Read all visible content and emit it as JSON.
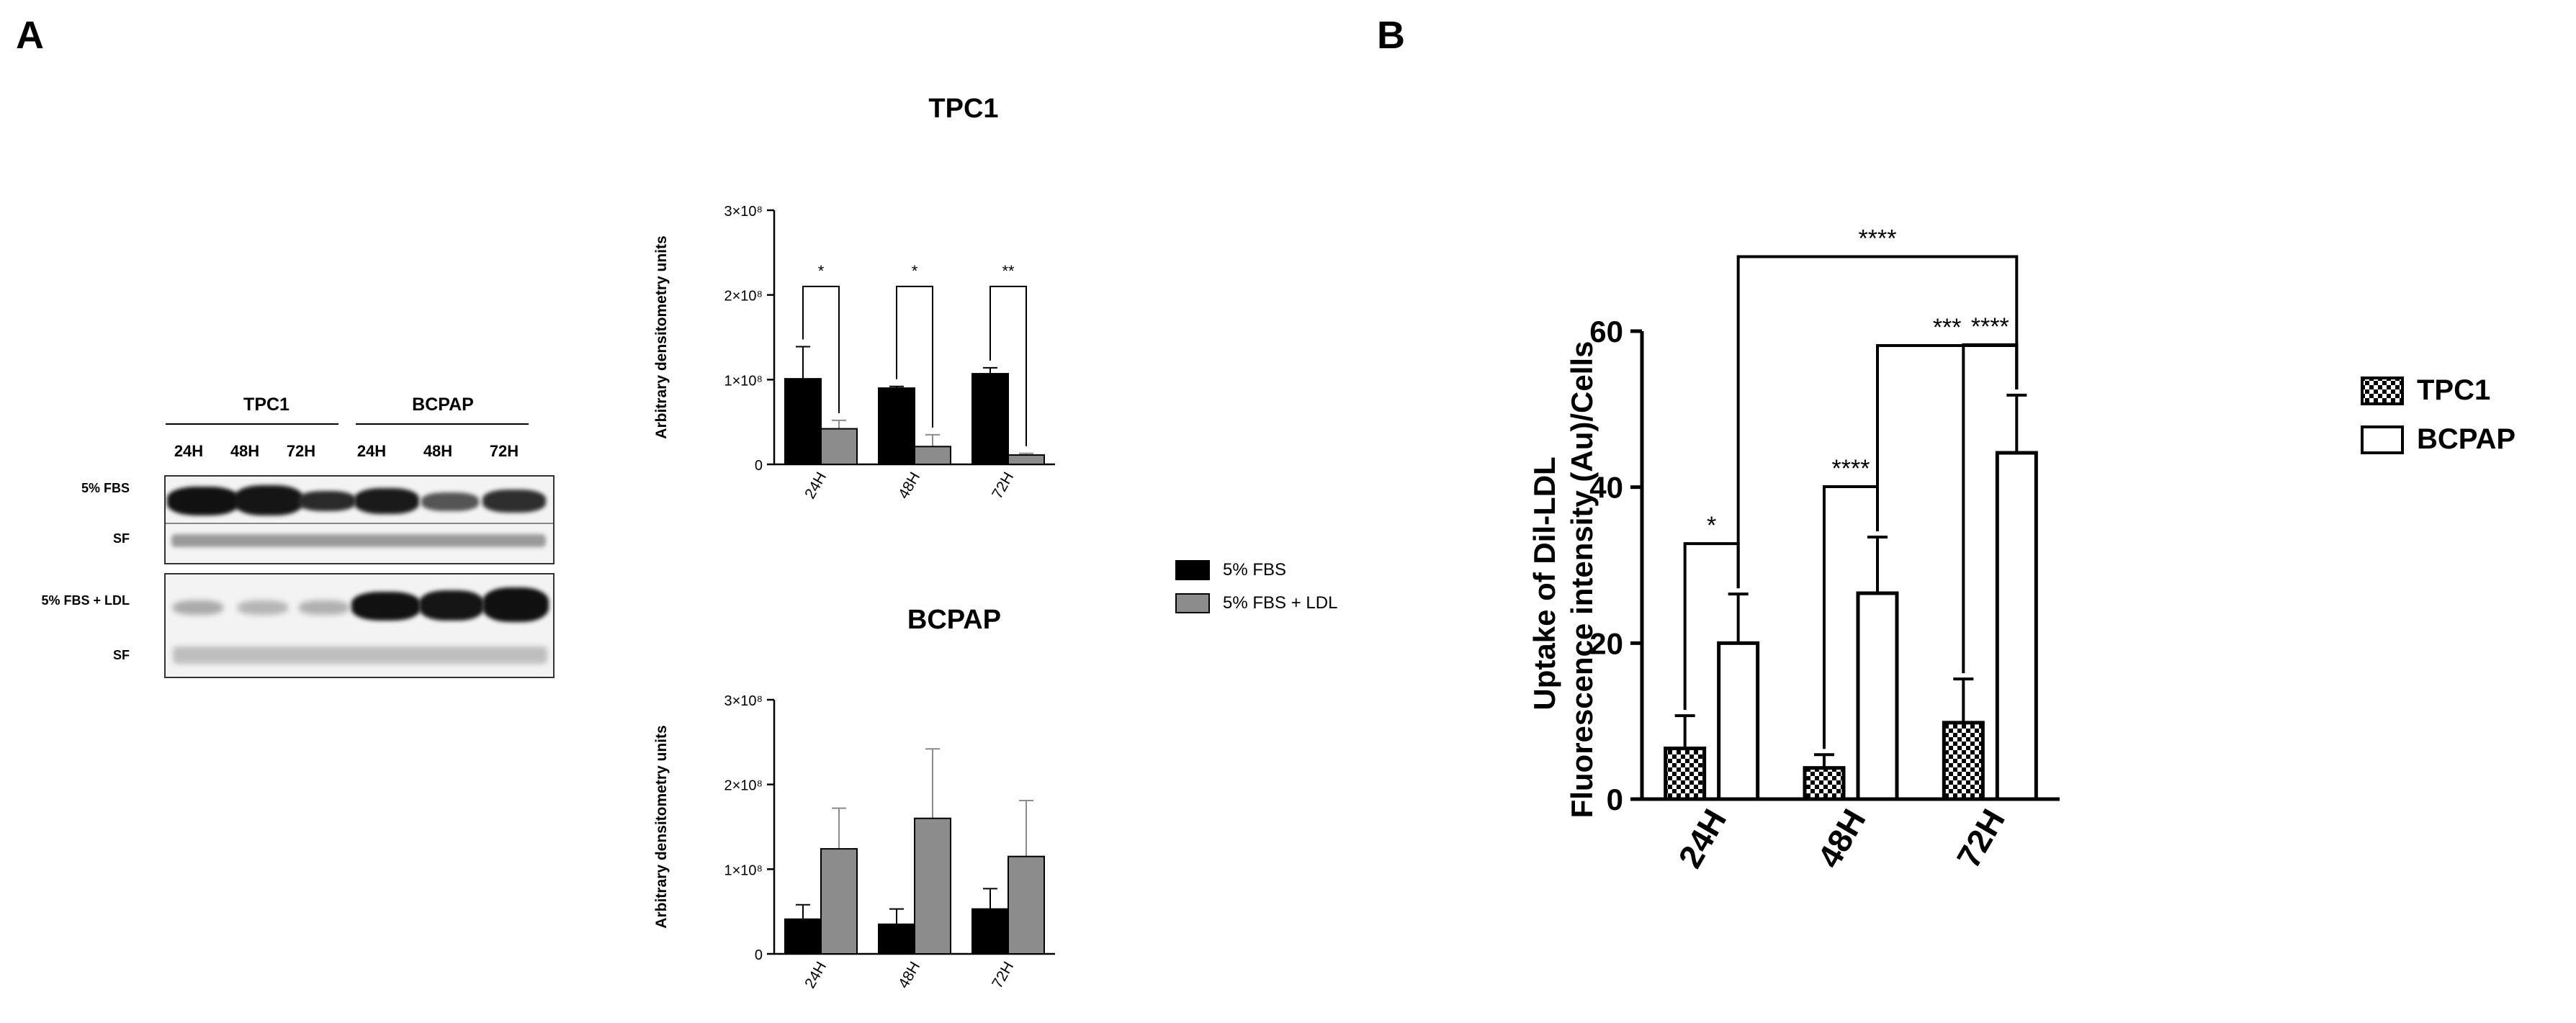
{
  "figure": {
    "panel_a_label": "A",
    "panel_b_label": "B"
  },
  "blot": {
    "group_labels": [
      "TPC1",
      "BCPAP"
    ],
    "lane_labels": [
      "24H",
      "48H",
      "72H",
      "24H",
      "48H",
      "72H"
    ],
    "row_labels": [
      "5% FBS",
      "SF",
      "5% FBS + LDL",
      "SF"
    ]
  },
  "chart_data": [
    {
      "id": "tpc1_densitometry",
      "type": "bar",
      "title": "TPC1",
      "xlabel": "",
      "ylabel": "Arbitrary densitometry units",
      "categories": [
        "24H",
        "48H",
        "72H"
      ],
      "ylim": [
        0,
        300000000
      ],
      "ytick_labels": [
        "0",
        "1×10⁸",
        "2×10⁸",
        "3×10⁸"
      ],
      "series": [
        {
          "name": "5% FBS",
          "color": "#000000",
          "values": [
            101000000,
            90000000,
            107000000
          ],
          "errors": [
            38000000,
            2000000,
            7000000
          ]
        },
        {
          "name": "5% FBS + LDL",
          "color": "#8c8c8c",
          "values": [
            42000000,
            21000000,
            11000000
          ],
          "errors": [
            10000000,
            14000000,
            2000000
          ]
        }
      ],
      "significance": [
        "*",
        "*",
        "**"
      ]
    },
    {
      "id": "bcpap_densitometry",
      "type": "bar",
      "title": "BCPAP",
      "xlabel": "",
      "ylabel": "Arbitrary densitometry units",
      "categories": [
        "24H",
        "48H",
        "72H"
      ],
      "ylim": [
        0,
        300000000
      ],
      "ytick_labels": [
        "0",
        "1×10⁸",
        "2×10⁸",
        "3×10⁸"
      ],
      "series": [
        {
          "name": "5% FBS",
          "color": "#000000",
          "values": [
            41000000,
            35000000,
            53000000
          ],
          "errors": [
            17000000,
            18000000,
            24000000
          ]
        },
        {
          "name": "5% FBS + LDL",
          "color": "#8c8c8c",
          "values": [
            124000000,
            160000000,
            115000000
          ],
          "errors": [
            48000000,
            82000000,
            66000000
          ]
        }
      ]
    },
    {
      "id": "dil_ldl_uptake",
      "type": "bar",
      "title": "",
      "xlabel": "",
      "ylabel_lines": [
        "Uptake of Dil-LDL",
        "Fluorescence intensity (Au)/Cells"
      ],
      "categories": [
        "24H",
        "48H",
        "72H"
      ],
      "ylim": [
        0,
        60
      ],
      "yticks": [
        0,
        20,
        40,
        60
      ],
      "series": [
        {
          "name": "TPC1",
          "pattern": "checker",
          "values": [
            6.5,
            4,
            9.8
          ],
          "errors": [
            4.2,
            1.7,
            5.6
          ]
        },
        {
          "name": "BCPAP",
          "pattern": "open",
          "values": [
            20,
            26.4,
            44.4
          ],
          "errors": [
            6.3,
            7.2,
            7.4
          ]
        }
      ],
      "significance": [
        {
          "label": "*",
          "from": "TPC1 24H",
          "to": "BCPAP 24H"
        },
        {
          "label": "****",
          "from": "TPC1 48H",
          "to": "BCPAP 48H"
        },
        {
          "label": "****",
          "from": "TPC1 72H",
          "to": "BCPAP 72H"
        },
        {
          "label": "***",
          "from": "BCPAP 48H",
          "to": "BCPAP 72H"
        },
        {
          "label": "****",
          "from": "BCPAP 24H",
          "to": "BCPAP 72H"
        }
      ]
    }
  ],
  "legend_a": [
    "5% FBS",
    "5% FBS + LDL"
  ],
  "legend_b": [
    "TPC1",
    "BCPAP"
  ]
}
